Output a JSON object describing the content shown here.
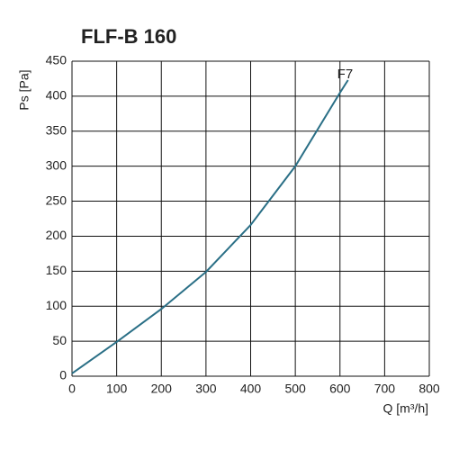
{
  "chart_data": {
    "type": "line",
    "title": "FLF-B 160",
    "xlabel": "Q [m³/h]",
    "ylabel": "Ps [Pa]",
    "x": [
      0,
      100,
      200,
      300,
      400,
      500,
      600,
      618
    ],
    "series": [
      {
        "name": "F7",
        "color": "#2a6f86",
        "values": [
          4,
          49,
          96,
          149,
          216,
          300,
          405,
          423
        ]
      }
    ],
    "xlim": [
      0,
      800
    ],
    "xticks": [
      0,
      100,
      200,
      300,
      400,
      500,
      600,
      700,
      800
    ],
    "ylim": [
      0,
      450
    ],
    "yticks": [
      0,
      50,
      100,
      150,
      200,
      250,
      300,
      350,
      400,
      450
    ],
    "grid": true
  }
}
